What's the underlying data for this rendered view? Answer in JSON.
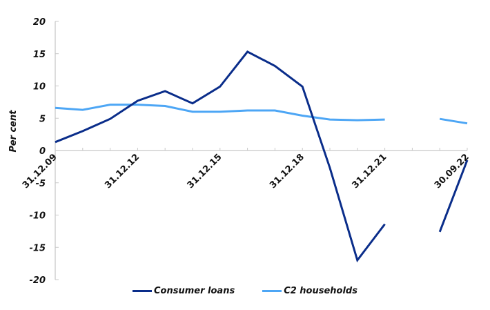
{
  "chart_data": {
    "type": "line",
    "title": "",
    "xlabel": "",
    "ylabel": "Per cent",
    "ylim": [
      -20,
      20
    ],
    "yticks": [
      20,
      15,
      10,
      5,
      0,
      -5,
      -10,
      -15,
      -20
    ],
    "grid": false,
    "legend_position": "bottom",
    "x_tick_labels": [
      "31.12.09",
      "31.12.12",
      "31.12.15",
      "31.12.18",
      "31.12.21",
      "30.09.22"
    ],
    "x_tick_label_indices": [
      0,
      3,
      6,
      9,
      12,
      15
    ],
    "x_count": 16,
    "series": [
      {
        "name": "Consumer loans",
        "color": "#0a2d8a",
        "values": [
          1.3,
          3.0,
          4.9,
          7.7,
          9.2,
          7.3,
          9.9,
          15.3,
          13.1,
          9.9,
          -2.7,
          -17.0,
          -11.4,
          null,
          -12.6,
          -1.5
        ]
      },
      {
        "name": "C2 households",
        "color": "#4da6f5",
        "values": [
          6.6,
          6.3,
          7.1,
          7.1,
          6.9,
          6.0,
          6.0,
          6.2,
          6.2,
          5.4,
          4.8,
          4.7,
          4.8,
          null,
          4.9,
          4.2
        ]
      }
    ]
  },
  "legend": {
    "items": [
      {
        "label": "Consumer loans",
        "color": "#0a2d8a"
      },
      {
        "label": "C2 households",
        "color": "#4da6f5"
      }
    ]
  }
}
